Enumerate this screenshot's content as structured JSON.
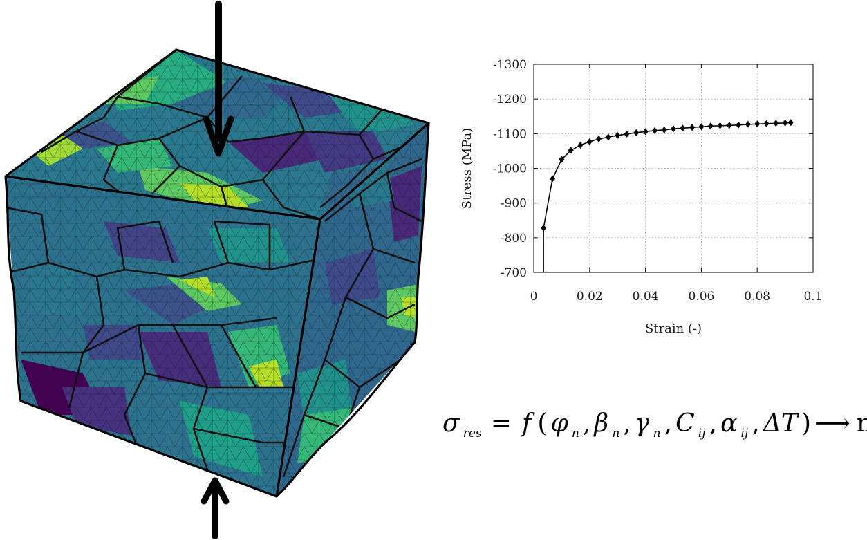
{
  "chart_data": {
    "type": "line",
    "xlabel": "Strain (-)",
    "ylabel": "Stress (MPa)",
    "xlim": [
      0,
      0.1
    ],
    "ylim": [
      -700,
      -1300
    ],
    "y_axis_inverted": true,
    "x_ticks": [
      0,
      0.02,
      0.04,
      0.06,
      0.08,
      0.1
    ],
    "x_tick_labels": [
      "0",
      "0.02",
      "0.04",
      "0.06",
      "0.08",
      "0.1"
    ],
    "y_ticks": [
      -700,
      -800,
      -900,
      -1000,
      -1100,
      -1200,
      -1300
    ],
    "y_tick_labels": [
      "-700",
      "-800",
      "-900",
      "-1000",
      "-1100",
      "-1200",
      "-1300"
    ],
    "grid": true,
    "line_color": "#000000",
    "marker": "diamond",
    "series": [
      {
        "x": [
          0.0035,
          0.0035,
          0.0067,
          0.01,
          0.0133,
          0.0167,
          0.02,
          0.0233,
          0.0267,
          0.03,
          0.0333,
          0.0367,
          0.04,
          0.0433,
          0.0467,
          0.05,
          0.0533,
          0.0567,
          0.06,
          0.0633,
          0.0667,
          0.07,
          0.0733,
          0.0767,
          0.08,
          0.0833,
          0.0867,
          0.09,
          0.092
        ],
        "y": [
          -700,
          -828,
          -970,
          -1026,
          -1052,
          -1067,
          -1077,
          -1085,
          -1090,
          -1095,
          -1099,
          -1103,
          -1106,
          -1109,
          -1111,
          -1114,
          -1116,
          -1118,
          -1120,
          -1122,
          -1123,
          -1124,
          -1125,
          -1127,
          -1128,
          -1129,
          -1130,
          -1131,
          -1132
        ],
        "markers_from_index": 1
      }
    ]
  },
  "diagram": {
    "mesh_palette": [
      "#440154",
      "#3b528b",
      "#21918c",
      "#27ad81",
      "#5ec962",
      "#b5de2b"
    ],
    "edge_color": "#111111",
    "arrow_color": "#000000"
  },
  "equation": {
    "lhs": "σ",
    "lhs_sub": "res",
    "equals": "=",
    "func": "f",
    "open": "(",
    "args": [
      {
        "symbol": "φ",
        "sub": "n"
      },
      {
        "symbol": "β",
        "sub": "n"
      },
      {
        "symbol": "γ",
        "sub": "n"
      },
      {
        "symbol": "C",
        "sub": "ij"
      },
      {
        "symbol": "α",
        "sub": "ij"
      },
      {
        "symbol": "ΔT",
        "sub": ""
      }
    ],
    "close": ")",
    "arrow": "⟶",
    "target": "min"
  }
}
